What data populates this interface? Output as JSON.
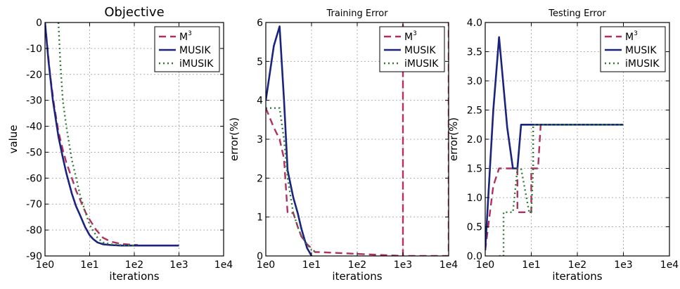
{
  "chart_data": [
    {
      "type": "line",
      "title": "Objective",
      "xlabel": "iterations",
      "ylabel": "value",
      "xscale": "log",
      "xlim": [
        1,
        10000
      ],
      "ylim": [
        -90,
        0
      ],
      "xticks": [
        1,
        10,
        100,
        1000,
        10000
      ],
      "xtick_labels": [
        "1e0",
        "1e1",
        "1e2",
        "1e3",
        "1e4"
      ],
      "yticks": [
        -90,
        -80,
        -70,
        -60,
        -50,
        -40,
        -30,
        -20,
        -10,
        0
      ],
      "ytick_labels": [
        "-90",
        "-80",
        "-70",
        "-60",
        "-50",
        "-40",
        "-30",
        "-20",
        "-10",
        "0"
      ],
      "grid": true,
      "legend_position": "top-right",
      "series": [
        {
          "name": "M",
          "name_sup": "3",
          "style": "dashed",
          "color": "#b03060",
          "x": [
            1,
            1.3,
            1.6,
            2,
            2.5,
            3,
            4,
            5,
            6,
            8,
            10,
            14,
            20,
            30,
            50,
            80,
            120
          ],
          "y": [
            0,
            -20,
            -32,
            -42,
            -49,
            -54,
            -60,
            -65,
            -68,
            -73,
            -76,
            -80,
            -83,
            -84.5,
            -85.3,
            -85.6,
            -85.8
          ]
        },
        {
          "name": "MUSIK",
          "style": "solid",
          "color": "#1a237e",
          "x": [
            1,
            1.2,
            1.5,
            2,
            2.5,
            3,
            4,
            5,
            6,
            8,
            10,
            12,
            15,
            20,
            30,
            50,
            100,
            200,
            500,
            1000
          ],
          "y": [
            0,
            -15,
            -30,
            -44,
            -52,
            -58,
            -66,
            -71,
            -74,
            -79,
            -82,
            -83.5,
            -84.8,
            -85.5,
            -85.8,
            -86,
            -86,
            -86,
            -86,
            -86
          ]
        },
        {
          "name": "iMUSIK",
          "style": "dotted",
          "color": "#2e7d32",
          "x": [
            2,
            2.2,
            2.5,
            3,
            3.5,
            4,
            5,
            6,
            8,
            10,
            15,
            20,
            30,
            50,
            100
          ],
          "y": [
            0,
            -15,
            -30,
            -40,
            -47,
            -53,
            -60,
            -66,
            -73,
            -78,
            -83,
            -84.8,
            -85.5,
            -85.8,
            -86
          ]
        }
      ]
    },
    {
      "type": "line",
      "title": "Training Error",
      "xlabel": "iterations",
      "ylabel": "error(%)",
      "xscale": "log",
      "xlim": [
        1,
        10000
      ],
      "ylim": [
        0,
        6
      ],
      "xticks": [
        1,
        10,
        100,
        1000,
        10000
      ],
      "xtick_labels": [
        "1e0",
        "1e1",
        "1e2",
        "1e3",
        "1e4"
      ],
      "yticks": [
        0,
        1,
        2,
        3,
        4,
        5,
        6
      ],
      "ytick_labels": [
        "0",
        "1",
        "2",
        "3",
        "4",
        "5",
        "6"
      ],
      "grid": true,
      "legend_position": "top-right",
      "series": [
        {
          "name": "M",
          "name_sup": "3",
          "style": "dashed",
          "color": "#b03060",
          "x": [
            1,
            1.5,
            2,
            2.5,
            3,
            4,
            5,
            6,
            8,
            10,
            12,
            14,
            1000,
            1000,
            1000,
            10000,
            10000,
            10000
          ],
          "y": [
            3.8,
            3.3,
            3.0,
            2.5,
            1.1,
            1.1,
            0.75,
            0.5,
            0.3,
            0.2,
            0.1,
            0.1,
            0,
            6,
            0,
            0,
            6,
            0
          ]
        },
        {
          "name": "MUSIK",
          "style": "solid",
          "color": "#1a237e",
          "x": [
            1,
            1.5,
            2,
            2.5,
            3,
            4,
            5,
            6,
            8,
            9,
            10
          ],
          "y": [
            4.0,
            5.4,
            5.9,
            4.0,
            2.2,
            1.5,
            1.1,
            0.7,
            0.2,
            0.1,
            0
          ]
        },
        {
          "name": "iMUSIK",
          "style": "dotted",
          "color": "#2e7d32",
          "x": [
            1,
            1.5,
            2,
            2.5,
            3,
            4,
            5,
            6,
            8,
            10,
            12
          ],
          "y": [
            3.8,
            3.8,
            3.8,
            3.0,
            2.0,
            1.1,
            0.75,
            0.5,
            0.3,
            0.15,
            0.1
          ]
        }
      ]
    },
    {
      "type": "line",
      "title": "Testing Error",
      "xlabel": "iterations",
      "ylabel": "error(%)",
      "xscale": "log",
      "xlim": [
        1,
        10000
      ],
      "ylim": [
        0,
        4
      ],
      "xticks": [
        1,
        10,
        100,
        1000,
        10000
      ],
      "xtick_labels": [
        "1e0",
        "1e1",
        "1e2",
        "1e3",
        "1e4"
      ],
      "yticks": [
        0,
        0.5,
        1,
        1.5,
        2,
        2.5,
        3,
        3.5,
        4
      ],
      "ytick_labels": [
        "0.0",
        "0.5",
        "1.0",
        "1.5",
        "2.0",
        "2.5",
        "3.0",
        "3.5",
        "4.0"
      ],
      "grid": true,
      "legend_position": "top-right",
      "series": [
        {
          "name": "M",
          "name_sup": "3",
          "style": "dashed",
          "color": "#b03060",
          "x": [
            1,
            1.5,
            2,
            4,
            5,
            5,
            10,
            10,
            14,
            14,
            16,
            1000
          ],
          "y": [
            0.1,
            1.2,
            1.5,
            1.5,
            1.5,
            0.75,
            0.75,
            1.5,
            1.5,
            1.5,
            2.25,
            2.25
          ]
        },
        {
          "name": "MUSIK",
          "style": "solid",
          "color": "#1a237e",
          "x": [
            1,
            1.5,
            2,
            3,
            4,
            5,
            6,
            10,
            100,
            1000
          ],
          "y": [
            0.1,
            2.5,
            3.75,
            2.2,
            1.5,
            1.5,
            2.25,
            2.25,
            2.25,
            2.25
          ]
        },
        {
          "name": "iMUSIK",
          "style": "dotted",
          "color": "#2e7d32",
          "x": [
            2,
            2.5,
            2.5,
            4,
            5,
            6,
            9,
            10,
            11,
            11,
            1000
          ],
          "y": [
            0,
            0,
            0.75,
            0.75,
            1.5,
            1.5,
            0.75,
            0.75,
            1.5,
            2.25,
            2.25
          ]
        }
      ]
    }
  ]
}
